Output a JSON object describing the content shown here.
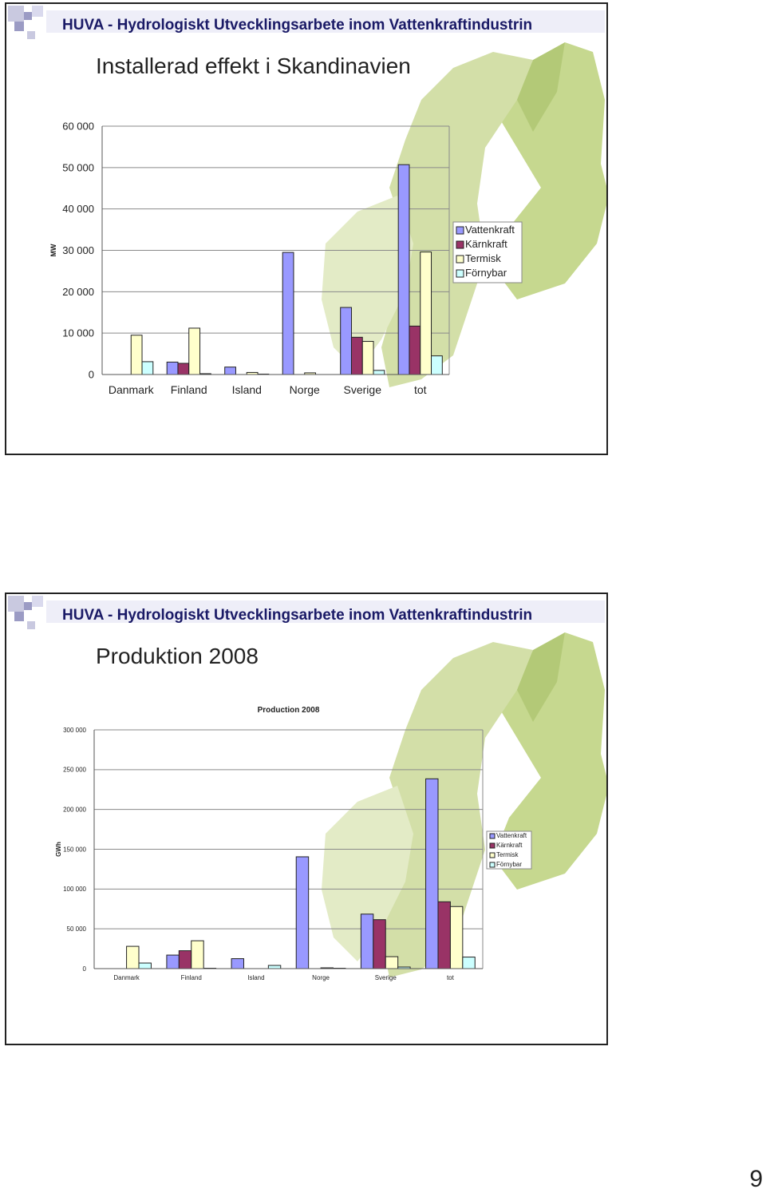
{
  "slides": [
    {
      "banner": "HUVA - Hydrologiskt Utvecklingsarbete inom Vattenkraftindustrin",
      "heading": "Installerad effekt i Skandinavien"
    },
    {
      "banner": "HUVA - Hydrologiskt Utvecklingsarbete inom Vattenkraftindustrin",
      "heading": "Produktion 2008"
    }
  ],
  "page_number": "9",
  "colors": {
    "banner_text": "#1a1a66",
    "map_light": "#dde6bd",
    "map_dark": "#a9c46a",
    "Vattenkraft": "#9999ff",
    "Kärnkraft": "#993366",
    "Termisk": "#ffffcc",
    "Förnybar": "#ccffff"
  },
  "chart_data": [
    {
      "type": "bar",
      "title": "",
      "ylabel": "MW",
      "xlabel": "",
      "categories": [
        "Danmark",
        "Finland",
        "Island",
        "Norge",
        "Sverige",
        "tot"
      ],
      "ylim": [
        0,
        60000
      ],
      "yticks": [
        0,
        10000,
        20000,
        30000,
        40000,
        50000,
        60000
      ],
      "ytick_labels": [
        "0",
        "10 000",
        "20 000",
        "30 000",
        "40 000",
        "50 000",
        "60 000"
      ],
      "grid": true,
      "legend_position": "right",
      "series": [
        {
          "name": "Vattenkraft",
          "values": [
            0,
            3000,
            1800,
            29500,
            16200,
            50700
          ]
        },
        {
          "name": "Kärnkraft",
          "values": [
            0,
            2700,
            0,
            0,
            9000,
            11700
          ]
        },
        {
          "name": "Termisk",
          "values": [
            9500,
            11200,
            500,
            400,
            8000,
            29600
          ]
        },
        {
          "name": "Förnybar",
          "values": [
            3100,
            200,
            100,
            0,
            1000,
            4500
          ]
        }
      ]
    },
    {
      "type": "bar",
      "title": "Production 2008",
      "ylabel": "GWh",
      "xlabel": "",
      "categories": [
        "Danmark",
        "Finland",
        "Island",
        "Norge",
        "Sverige",
        "tot"
      ],
      "ylim": [
        0,
        300000
      ],
      "yticks": [
        0,
        50000,
        100000,
        150000,
        200000,
        250000,
        300000
      ],
      "ytick_labels": [
        "0",
        "50 000",
        "100 000",
        "150 000",
        "200 000",
        "250 000",
        "300 000"
      ],
      "grid": true,
      "legend_position": "right",
      "series": [
        {
          "name": "Vattenkraft",
          "values": [
            0,
            17000,
            12500,
            140500,
            68500,
            238500
          ]
        },
        {
          "name": "Kärnkraft",
          "values": [
            0,
            22500,
            0,
            0,
            61500,
            84000
          ]
        },
        {
          "name": "Termisk",
          "values": [
            28000,
            35000,
            0,
            1000,
            15000,
            78000
          ]
        },
        {
          "name": "Förnybar",
          "values": [
            7000,
            500,
            4000,
            500,
            2000,
            14500
          ]
        }
      ]
    }
  ]
}
